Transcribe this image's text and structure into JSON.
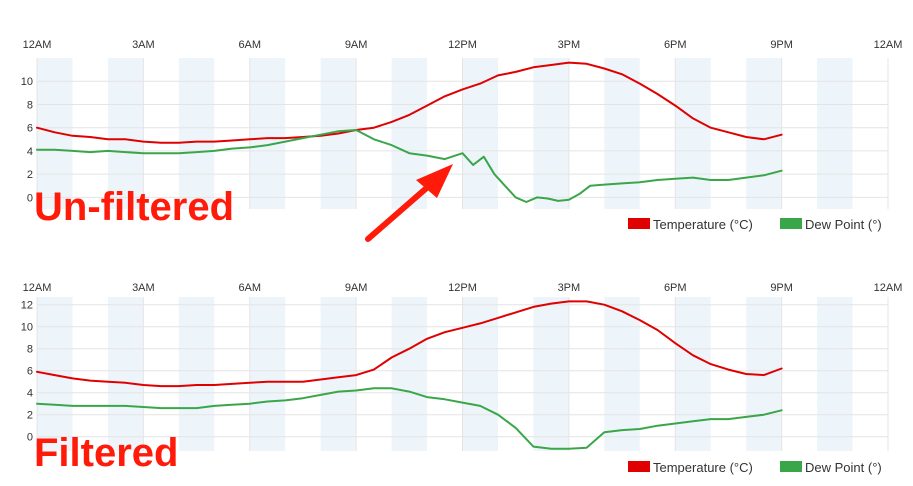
{
  "colors": {
    "temperature": "#e00000",
    "dew_point": "#3aa64a",
    "band": "#eef5fa",
    "grid": "#e4e4e4",
    "annotation": "#ff1a0a"
  },
  "charts": [
    {
      "label": "Un-filtered",
      "legend": [
        {
          "name": "Temperature (°C)",
          "series": "temperature"
        },
        {
          "name": "Dew Point (°)",
          "series": "dew_point"
        }
      ]
    },
    {
      "label": "Filtered",
      "legend": [
        {
          "name": "Temperature (°C)",
          "series": "temperature"
        },
        {
          "name": "Dew Point (°)",
          "series": "dew_point"
        }
      ]
    }
  ],
  "chart_data": [
    {
      "type": "line",
      "title": "Un-filtered",
      "x_unit": "hour of day",
      "xlim": [
        0,
        24
      ],
      "ylim": [
        -1,
        12
      ],
      "x_tick_labels": [
        "12AM",
        "3AM",
        "6AM",
        "9AM",
        "12PM",
        "3PM",
        "6PM",
        "9PM",
        "12AM"
      ],
      "y_ticks": [
        0,
        2,
        4,
        6,
        8,
        10
      ],
      "grid": true,
      "legend_position": "bottom-right",
      "series": [
        {
          "name": "Temperature (°C)",
          "color": "#e00000",
          "x": [
            0,
            0.5,
            1,
            1.5,
            2,
            2.5,
            3,
            3.5,
            4,
            4.5,
            5,
            5.5,
            6,
            6.5,
            7,
            7.5,
            8,
            8.5,
            9,
            9.5,
            10,
            10.5,
            11,
            11.5,
            12,
            12.5,
            13,
            13.5,
            14,
            14.5,
            15,
            15.5,
            16,
            16.5,
            17,
            17.5,
            18,
            18.5,
            19,
            19.5,
            20,
            20.5,
            21
          ],
          "values": [
            6.0,
            5.6,
            5.3,
            5.2,
            5.0,
            5.0,
            4.8,
            4.7,
            4.7,
            4.8,
            4.8,
            4.9,
            5.0,
            5.1,
            5.1,
            5.2,
            5.3,
            5.5,
            5.8,
            6.0,
            6.5,
            7.1,
            7.9,
            8.7,
            9.3,
            9.8,
            10.5,
            10.8,
            11.2,
            11.4,
            11.6,
            11.5,
            11.1,
            10.6,
            9.8,
            8.9,
            7.9,
            6.8,
            6.0,
            5.6,
            5.2,
            5.0,
            5.4
          ]
        },
        {
          "name": "Dew Point (°)",
          "color": "#3aa64a",
          "x": [
            0,
            0.5,
            1,
            1.5,
            2,
            2.5,
            3,
            3.5,
            4,
            4.5,
            5,
            5.5,
            6,
            6.5,
            7,
            7.5,
            8,
            8.5,
            9,
            9.5,
            10,
            10.5,
            11,
            11.5,
            12,
            12.3,
            12.6,
            12.9,
            13.2,
            13.5,
            13.8,
            14.1,
            14.4,
            14.7,
            15,
            15.3,
            15.6,
            16,
            16.5,
            17,
            17.5,
            18,
            18.5,
            19,
            19.5,
            20,
            20.5,
            21
          ],
          "values": [
            4.1,
            4.1,
            4.0,
            3.9,
            4.0,
            3.9,
            3.8,
            3.8,
            3.8,
            3.9,
            4.0,
            4.2,
            4.3,
            4.5,
            4.8,
            5.1,
            5.4,
            5.7,
            5.8,
            5.0,
            4.5,
            3.8,
            3.6,
            3.3,
            3.8,
            2.8,
            3.5,
            2.0,
            1.0,
            0.0,
            -0.4,
            0.0,
            -0.1,
            -0.3,
            -0.2,
            0.3,
            1.0,
            1.1,
            1.2,
            1.3,
            1.5,
            1.6,
            1.7,
            1.5,
            1.5,
            1.7,
            1.9,
            2.3
          ]
        }
      ]
    },
    {
      "type": "line",
      "title": "Filtered",
      "x_unit": "hour of day",
      "xlim": [
        0,
        24
      ],
      "ylim": [
        -1.3,
        12.7
      ],
      "x_tick_labels": [
        "12AM",
        "3AM",
        "6AM",
        "9AM",
        "12PM",
        "3PM",
        "6PM",
        "9PM",
        "12AM"
      ],
      "y_ticks": [
        0,
        2,
        4,
        6,
        8,
        10,
        12
      ],
      "grid": true,
      "legend_position": "bottom-right",
      "series": [
        {
          "name": "Temperature (°C)",
          "color": "#e00000",
          "x": [
            0,
            0.5,
            1,
            1.5,
            2,
            2.5,
            3,
            3.5,
            4,
            4.5,
            5,
            5.5,
            6,
            6.5,
            7,
            7.5,
            8,
            8.5,
            9,
            9.5,
            10,
            10.5,
            11,
            11.5,
            12,
            12.5,
            13,
            13.5,
            14,
            14.5,
            15,
            15.5,
            16,
            16.5,
            17,
            17.5,
            18,
            18.5,
            19,
            19.5,
            20,
            20.5,
            21
          ],
          "values": [
            5.9,
            5.6,
            5.3,
            5.1,
            5.0,
            4.9,
            4.7,
            4.6,
            4.6,
            4.7,
            4.7,
            4.8,
            4.9,
            5.0,
            5.0,
            5.0,
            5.2,
            5.4,
            5.6,
            6.1,
            7.2,
            8.0,
            8.9,
            9.5,
            9.9,
            10.3,
            10.8,
            11.3,
            11.8,
            12.1,
            12.3,
            12.3,
            12.0,
            11.4,
            10.6,
            9.7,
            8.5,
            7.4,
            6.6,
            6.1,
            5.7,
            5.6,
            6.2
          ]
        },
        {
          "name": "Dew Point (°)",
          "color": "#3aa64a",
          "x": [
            0,
            0.5,
            1,
            1.5,
            2,
            2.5,
            3,
            3.5,
            4,
            4.5,
            5,
            5.5,
            6,
            6.5,
            7,
            7.5,
            8,
            8.5,
            9,
            9.5,
            10,
            10.5,
            11,
            11.5,
            12,
            12.5,
            13,
            13.5,
            14,
            14.5,
            15,
            15.5,
            16,
            16.5,
            17,
            17.5,
            18,
            18.5,
            19,
            19.5,
            20,
            20.5,
            21
          ],
          "values": [
            3.0,
            2.9,
            2.8,
            2.8,
            2.8,
            2.8,
            2.7,
            2.6,
            2.6,
            2.6,
            2.8,
            2.9,
            3.0,
            3.2,
            3.3,
            3.5,
            3.8,
            4.1,
            4.2,
            4.4,
            4.4,
            4.1,
            3.6,
            3.4,
            3.1,
            2.8,
            2.0,
            0.8,
            -0.9,
            -1.1,
            -1.1,
            -1.0,
            0.4,
            0.6,
            0.7,
            1.0,
            1.2,
            1.4,
            1.6,
            1.6,
            1.8,
            2.0,
            2.4
          ]
        }
      ]
    }
  ]
}
